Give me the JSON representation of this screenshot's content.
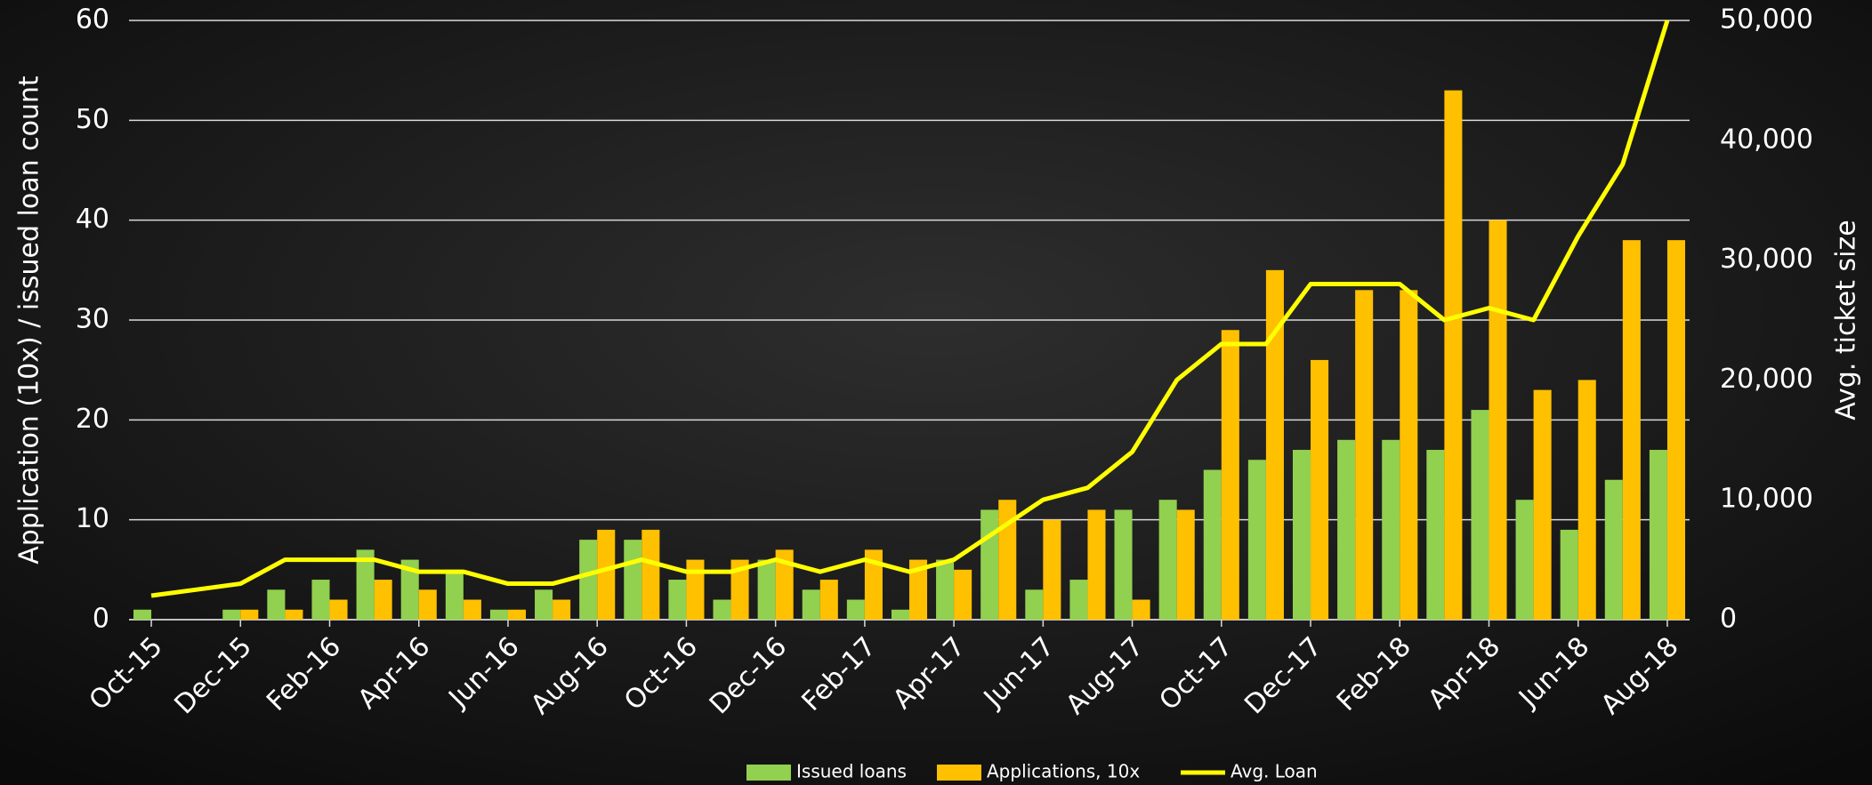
{
  "chart_data": {
    "type": "bar-line",
    "y_label": "Application (10x) / issued loan count",
    "y2_label": "Avg. ticket size",
    "categories": [
      "Oct-15",
      null,
      "Dec-15",
      null,
      "Feb-16",
      null,
      "Apr-16",
      null,
      "Jun-16",
      null,
      "Aug-16",
      null,
      "Oct-16",
      null,
      "Dec-16",
      null,
      "Feb-17",
      null,
      "Apr-17",
      null,
      "Jun-17",
      null,
      "Aug-17",
      null,
      "Oct-17",
      null,
      "Dec-17",
      null,
      "Feb-18",
      null,
      "Apr-18",
      null,
      "Jun-18",
      null,
      "Aug-18"
    ],
    "series": [
      {
        "name": "Issued loans",
        "color": "#92d050",
        "kind": "bar",
        "values": [
          1,
          0,
          1,
          3,
          4,
          7,
          6,
          5,
          1,
          3,
          8,
          8,
          4,
          2,
          6,
          3,
          2,
          1,
          6,
          11,
          3,
          4,
          11,
          12,
          15,
          16,
          17,
          18,
          18,
          17,
          21,
          12,
          9,
          14,
          17
        ]
      },
      {
        "name": "Applications, 10x",
        "color": "#ffc000",
        "kind": "bar",
        "values": [
          0,
          0,
          1,
          1,
          2,
          4,
          3,
          2,
          1,
          2,
          9,
          9,
          6,
          6,
          7,
          4,
          7,
          6,
          5,
          12,
          10,
          11,
          2,
          11,
          29,
          35,
          26,
          33,
          33,
          53,
          40,
          23,
          24,
          38,
          38
        ]
      },
      {
        "name": "Avg. Loan",
        "color": "#ffff00",
        "kind": "line",
        "axis": "y2",
        "values": [
          2000,
          2500,
          3000,
          5000,
          5000,
          5000,
          4000,
          4000,
          3000,
          3000,
          4000,
          5000,
          4000,
          4000,
          5000,
          4000,
          5000,
          4000,
          5000,
          7500,
          10000,
          11000,
          14000,
          20000,
          23000,
          23000,
          28000,
          28000,
          28000,
          25000,
          26000,
          25000,
          32000,
          38000,
          50000
        ]
      }
    ],
    "ylim": [
      0,
      60
    ],
    "yticks": [
      0,
      10,
      20,
      30,
      40,
      50,
      60
    ],
    "y2lim": [
      0,
      50000
    ],
    "y2ticks": [
      0,
      {
        "value": 10000,
        "label": "10,000"
      },
      {
        "value": 20000,
        "label": "20,000"
      },
      {
        "value": 30000,
        "label": "30,000"
      },
      {
        "value": 40000,
        "label": "40,000"
      },
      {
        "value": 50000,
        "label": "50,000"
      }
    ],
    "grid": true,
    "legend": "bottom"
  }
}
